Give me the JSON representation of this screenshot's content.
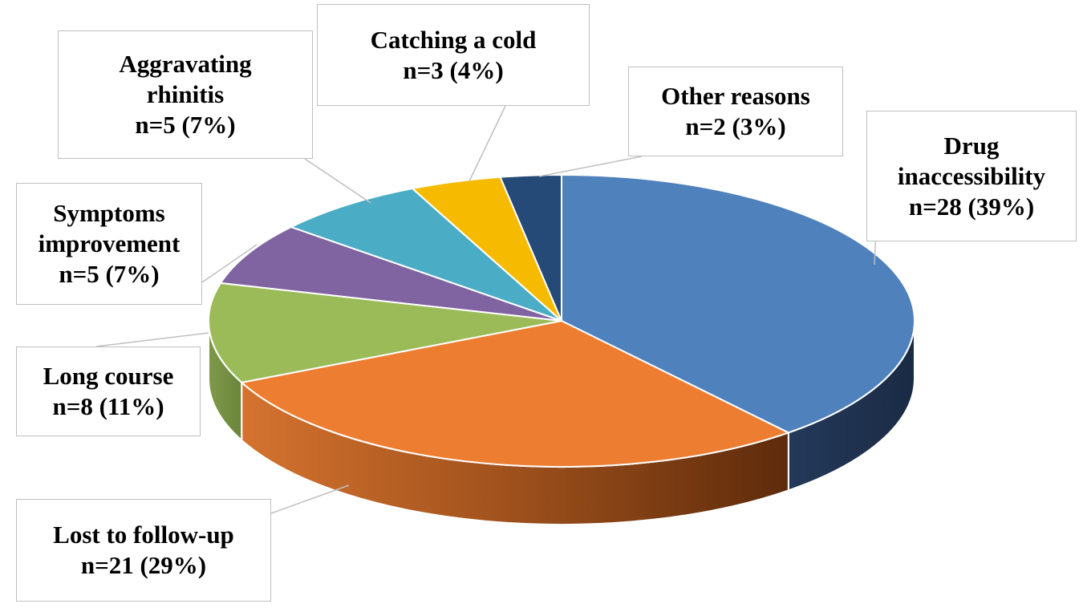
{
  "chart_data": {
    "type": "pie",
    "style": "3d",
    "title": "",
    "slices": [
      {
        "label_lines": [
          "Drug",
          "inaccessibility"
        ],
        "label": "Drug inaccessibility",
        "count_label": "n=28 (39%)",
        "value": 28,
        "percent": 39,
        "color": "#4f81bd",
        "side_color": "#203552"
      },
      {
        "label_lines": [
          "Lost to follow-up"
        ],
        "label": "Lost to follow-up",
        "count_label": "n=21 (29%)",
        "value": 21,
        "percent": 29,
        "color": "#ed7d31",
        "side_color": "#9e4a15"
      },
      {
        "label_lines": [
          "Long course"
        ],
        "label": "Long course",
        "count_label": "n=8 (11%)",
        "value": 8,
        "percent": 11,
        "color": "#9bbb59",
        "side_color": "#5c7530"
      },
      {
        "label_lines": [
          "Symptoms",
          "improvement"
        ],
        "label": "Symptoms improvement",
        "count_label": "n=5 (7%)",
        "value": 5,
        "percent": 7,
        "color": "#8064a2",
        "side_color": "#4a3861"
      },
      {
        "label_lines": [
          "Aggravating",
          "rhinitis"
        ],
        "label": "Aggravating rhinitis",
        "count_label": "n=5 (7%)",
        "value": 5,
        "percent": 7,
        "color": "#4bacc6",
        "side_color": "#2a6b7d"
      },
      {
        "label_lines": [
          "Catching a cold"
        ],
        "label": "Catching a cold",
        "count_label": "n=3 (4%)",
        "value": 3,
        "percent": 4,
        "color": "#f6bb00",
        "side_color": "#9a7500"
      },
      {
        "label_lines": [
          "Other reasons"
        ],
        "label": "Other reasons",
        "count_label": "n=2 (3%)",
        "value": 2,
        "percent": 3,
        "color": "#264a78",
        "side_color": "#14263d"
      }
    ]
  }
}
